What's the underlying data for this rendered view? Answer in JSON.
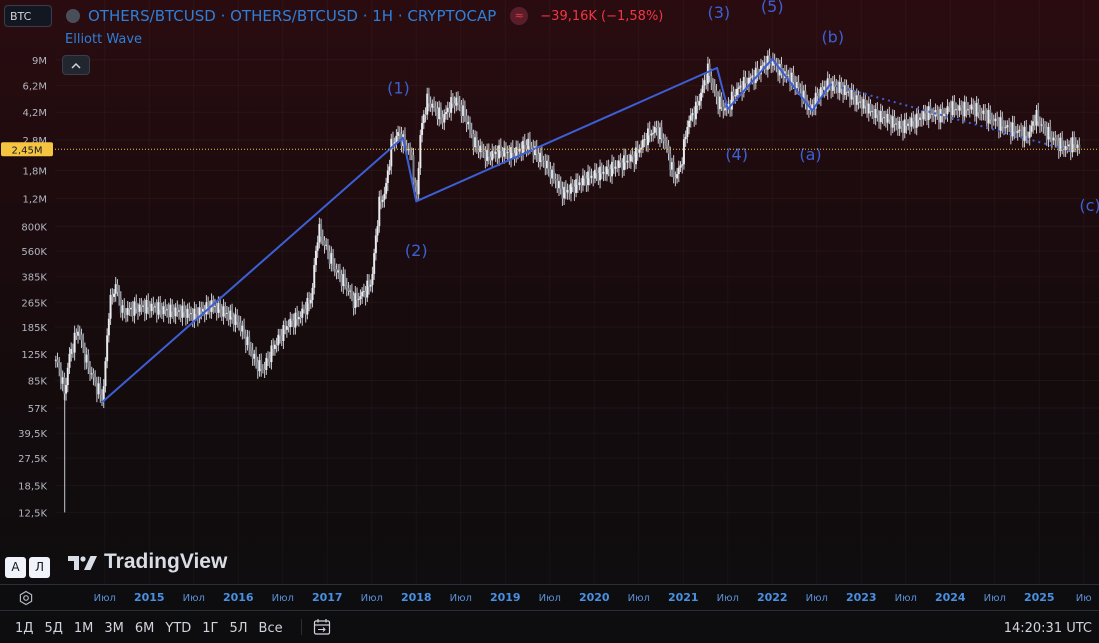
{
  "header": {
    "symbol_input": "BTC",
    "title": "OTHERS/BTCUSD · OTHERS/BTCUSD · 1Н · CRYPTOCAP",
    "wave_icon": "≈",
    "change": "−39,16K (−1,58%)",
    "study": "Elliott Wave"
  },
  "logo": "TradingView",
  "scale_buttons": {
    "auto": "А",
    "log": "Л"
  },
  "ranges": [
    "1Д",
    "5Д",
    "1М",
    "3М",
    "6М",
    "YTD",
    "1Г",
    "5Л",
    "Все"
  ],
  "clock": "14:20:31 UTC",
  "colors": {
    "accent": "#2f7fd9",
    "wave": "#3d5fd6",
    "down": "#f23645",
    "price_line": "#f5c542"
  },
  "chart_data": {
    "type": "candlestick",
    "title": "OTHERS/BTCUSD",
    "scale": "log",
    "y_ticks": [
      {
        "value": 9000000,
        "label": "9M"
      },
      {
        "value": 6200000,
        "label": "6,2M"
      },
      {
        "value": 4200000,
        "label": "4,2M"
      },
      {
        "value": 2800000,
        "label": "2,8M"
      },
      {
        "value": 1800000,
        "label": "1,8M"
      },
      {
        "value": 1200000,
        "label": "1,2M"
      },
      {
        "value": 800000,
        "label": "800K"
      },
      {
        "value": 560000,
        "label": "560K"
      },
      {
        "value": 385000,
        "label": "385K"
      },
      {
        "value": 265000,
        "label": "265K"
      },
      {
        "value": 185000,
        "label": "185K"
      },
      {
        "value": 125000,
        "label": "125K"
      },
      {
        "value": 85000,
        "label": "85K"
      },
      {
        "value": 57000,
        "label": "57K"
      },
      {
        "value": 39500,
        "label": "39,5K"
      },
      {
        "value": 27500,
        "label": "27,5K"
      },
      {
        "value": 18500,
        "label": "18,5K"
      },
      {
        "value": 12500,
        "label": "12,5K"
      }
    ],
    "ylim": [
      9000,
      12000000
    ],
    "x_ticks": [
      {
        "t": 2014.5,
        "label": "Июл",
        "year": false
      },
      {
        "t": 2015.0,
        "label": "2015",
        "year": true
      },
      {
        "t": 2015.5,
        "label": "Июл",
        "year": false
      },
      {
        "t": 2016.0,
        "label": "2016",
        "year": true
      },
      {
        "t": 2016.5,
        "label": "Июл",
        "year": false
      },
      {
        "t": 2017.0,
        "label": "2017",
        "year": true
      },
      {
        "t": 2017.5,
        "label": "Июл",
        "year": false
      },
      {
        "t": 2018.0,
        "label": "2018",
        "year": true
      },
      {
        "t": 2018.5,
        "label": "Июл",
        "year": false
      },
      {
        "t": 2019.0,
        "label": "2019",
        "year": true
      },
      {
        "t": 2019.5,
        "label": "Июл",
        "year": false
      },
      {
        "t": 2020.0,
        "label": "2020",
        "year": true
      },
      {
        "t": 2020.5,
        "label": "Июл",
        "year": false
      },
      {
        "t": 2021.0,
        "label": "2021",
        "year": true
      },
      {
        "t": 2021.5,
        "label": "Июл",
        "year": false
      },
      {
        "t": 2022.0,
        "label": "2022",
        "year": true
      },
      {
        "t": 2022.5,
        "label": "Июл",
        "year": false
      },
      {
        "t": 2023.0,
        "label": "2023",
        "year": true
      },
      {
        "t": 2023.5,
        "label": "Июл",
        "year": false
      },
      {
        "t": 2024.0,
        "label": "2024",
        "year": true
      },
      {
        "t": 2024.5,
        "label": "Июл",
        "year": false
      },
      {
        "t": 2025.0,
        "label": "2025",
        "year": true
      },
      {
        "t": 2025.5,
        "label": "Ию",
        "year": false
      }
    ],
    "xlim": [
      2013.75,
      2025.75
    ],
    "last_price": {
      "value": 2450000,
      "label": "2,45M"
    },
    "price_path": [
      [
        2013.95,
        115000
      ],
      [
        2014.0,
        95000
      ],
      [
        2014.05,
        70000
      ],
      [
        2014.1,
        120000
      ],
      [
        2014.2,
        180000
      ],
      [
        2014.3,
        110000
      ],
      [
        2014.4,
        80000
      ],
      [
        2014.48,
        65000
      ],
      [
        2014.55,
        250000
      ],
      [
        2014.62,
        340000
      ],
      [
        2014.7,
        230000
      ],
      [
        2014.85,
        245000
      ],
      [
        2015.0,
        250000
      ],
      [
        2015.2,
        235000
      ],
      [
        2015.4,
        230000
      ],
      [
        2015.5,
        220000
      ],
      [
        2015.7,
        255000
      ],
      [
        2015.85,
        230000
      ],
      [
        2016.0,
        200000
      ],
      [
        2016.1,
        150000
      ],
      [
        2016.2,
        110000
      ],
      [
        2016.28,
        100000
      ],
      [
        2016.4,
        140000
      ],
      [
        2016.55,
        190000
      ],
      [
        2016.7,
        220000
      ],
      [
        2016.82,
        280000
      ],
      [
        2016.9,
        780000
      ],
      [
        2017.0,
        560000
      ],
      [
        2017.1,
        420000
      ],
      [
        2017.2,
        350000
      ],
      [
        2017.3,
        270000
      ],
      [
        2017.4,
        300000
      ],
      [
        2017.5,
        360000
      ],
      [
        2017.58,
        1100000
      ],
      [
        2017.65,
        1300000
      ],
      [
        2017.72,
        2600000
      ],
      [
        2017.8,
        3100000
      ],
      [
        2017.88,
        2600000
      ],
      [
        2017.95,
        2200000
      ],
      [
        2018.0,
        1100000
      ],
      [
        2018.05,
        3200000
      ],
      [
        2018.12,
        5000000
      ],
      [
        2018.2,
        4500000
      ],
      [
        2018.3,
        3800000
      ],
      [
        2018.38,
        4700000
      ],
      [
        2018.45,
        5000000
      ],
      [
        2018.55,
        4000000
      ],
      [
        2018.65,
        2700000
      ],
      [
        2018.8,
        2200000
      ],
      [
        2018.95,
        2400000
      ],
      [
        2019.05,
        2300000
      ],
      [
        2019.15,
        2400000
      ],
      [
        2019.25,
        2700000
      ],
      [
        2019.35,
        2300000
      ],
      [
        2019.45,
        2000000
      ],
      [
        2019.55,
        1600000
      ],
      [
        2019.65,
        1300000
      ],
      [
        2019.75,
        1400000
      ],
      [
        2019.9,
        1600000
      ],
      [
        2020.0,
        1700000
      ],
      [
        2020.15,
        1800000
      ],
      [
        2020.3,
        2000000
      ],
      [
        2020.45,
        2200000
      ],
      [
        2020.6,
        3000000
      ],
      [
        2020.7,
        3300000
      ],
      [
        2020.8,
        2700000
      ],
      [
        2020.9,
        1600000
      ],
      [
        2020.97,
        1900000
      ],
      [
        2021.05,
        3600000
      ],
      [
        2021.15,
        4500000
      ],
      [
        2021.28,
        7800000
      ],
      [
        2021.38,
        5000000
      ],
      [
        2021.48,
        4300000
      ],
      [
        2021.58,
        5600000
      ],
      [
        2021.7,
        6500000
      ],
      [
        2021.82,
        7300000
      ],
      [
        2021.92,
        8600000
      ],
      [
        2022.0,
        8800000
      ],
      [
        2022.1,
        7500000
      ],
      [
        2022.2,
        7000000
      ],
      [
        2022.32,
        5800000
      ],
      [
        2022.42,
        4300000
      ],
      [
        2022.52,
        5500000
      ],
      [
        2022.62,
        6300000
      ],
      [
        2022.72,
        6100000
      ],
      [
        2022.82,
        5800000
      ],
      [
        2022.95,
        5000000
      ],
      [
        2023.05,
        4600000
      ],
      [
        2023.15,
        4100000
      ],
      [
        2023.3,
        3800000
      ],
      [
        2023.45,
        3400000
      ],
      [
        2023.6,
        3700000
      ],
      [
        2023.75,
        4200000
      ],
      [
        2023.9,
        4000000
      ],
      [
        2024.0,
        4500000
      ],
      [
        2024.12,
        4400000
      ],
      [
        2024.25,
        4500000
      ],
      [
        2024.38,
        4100000
      ],
      [
        2024.5,
        3700000
      ],
      [
        2024.62,
        3400000
      ],
      [
        2024.75,
        3200000
      ],
      [
        2024.88,
        3000000
      ],
      [
        2024.96,
        4000000
      ],
      [
        2025.05,
        3300000
      ],
      [
        2025.2,
        2700000
      ],
      [
        2025.3,
        2500000
      ],
      [
        2025.4,
        2700000
      ],
      [
        2025.45,
        2450000
      ]
    ],
    "wave_path": [
      [
        2014.47,
        62000
      ],
      [
        2017.85,
        2900000
      ],
      [
        2018.0,
        1150000
      ],
      [
        2021.38,
        8000000
      ],
      [
        2021.5,
        4400000
      ],
      [
        2022.0,
        9100000
      ],
      [
        2022.45,
        4300000
      ],
      [
        2022.65,
        6300000
      ]
    ],
    "wave_projection": [
      [
        2022.65,
        6300000
      ],
      [
        2025.35,
        2400000
      ]
    ],
    "wave_labels": [
      {
        "text": "(1)",
        "t": 2017.8,
        "v": 5500000
      },
      {
        "text": "(2)",
        "t": 2018.0,
        "v": 520000
      },
      {
        "text": "(3)",
        "t": 2021.4,
        "v": 16500000
      },
      {
        "text": "(4)",
        "t": 2021.6,
        "v": 2100000
      },
      {
        "text": "(5)",
        "t": 2022.0,
        "v": 18000000
      },
      {
        "text": "(a)",
        "t": 2022.43,
        "v": 2100000
      },
      {
        "text": "(b)",
        "t": 2022.68,
        "v": 11600000
      },
      {
        "text": "(c)",
        "t": 2025.57,
        "v": 1000000
      }
    ]
  }
}
